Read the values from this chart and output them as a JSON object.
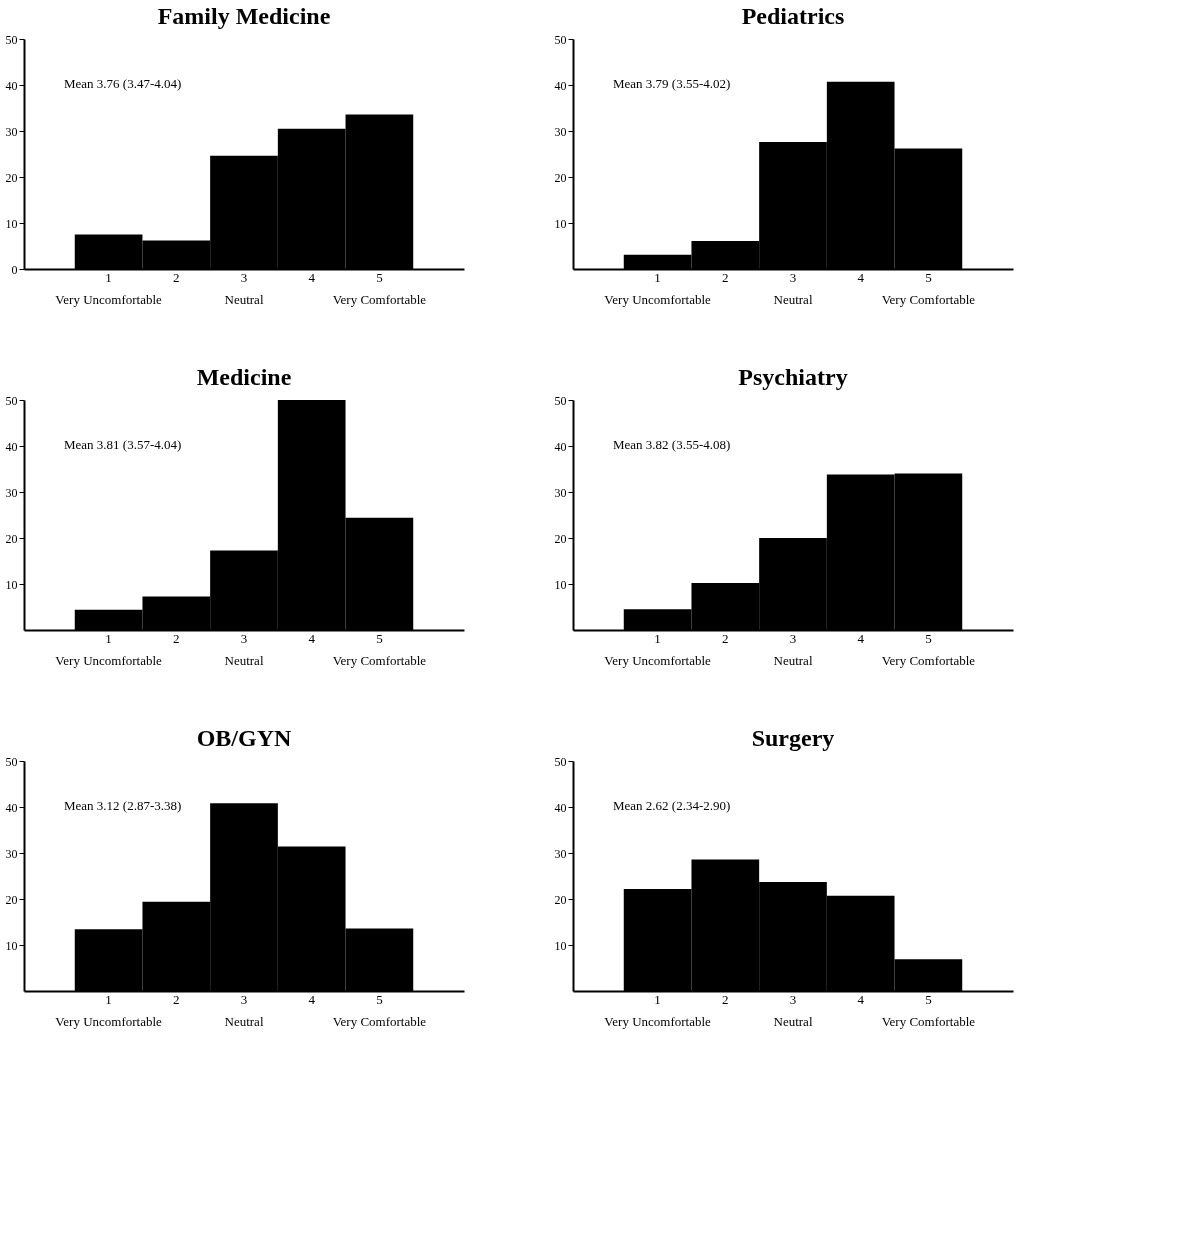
{
  "chart_data": [
    {
      "type": "bar",
      "title": "Family Medicine",
      "categories": [
        "1\nVery Uncomfortable",
        "2",
        "3\nNeutral",
        "4",
        "5\nVery Comfortable"
      ],
      "values": [
        7.5,
        6.2,
        24.6,
        30.5,
        33.6
      ],
      "color": "#000000",
      "ylim": [
        0,
        50
      ],
      "yticks": [
        0,
        10,
        20,
        30,
        40,
        50
      ],
      "grid": false,
      "annotations": [
        "Mean 3.76 (3.47-4.04)"
      ]
    },
    {
      "type": "bar",
      "title": "Pediatrics",
      "categories": [
        "1\nVery Uncomfortable",
        "2",
        "3\nNeutral",
        "4",
        "5\nVery Comfortable"
      ],
      "values": [
        3.1,
        6.1,
        27.6,
        40.7,
        26.2
      ],
      "color": "#000000",
      "ylim": [
        0,
        50
      ],
      "yticks": [
        10,
        20,
        30,
        40,
        50
      ],
      "grid": false,
      "annotations": [
        "Mean 3.79 (3.55-4.02)"
      ]
    },
    {
      "type": "bar",
      "title": "Medicine",
      "categories": [
        "1\nVery Uncomfortable",
        "2",
        "3\nNeutral",
        "4",
        "5\nVery Comfortable"
      ],
      "values": [
        4.4,
        7.3,
        17.3,
        50,
        24.4
      ],
      "color": "#000000",
      "ylim": [
        0,
        50
      ],
      "yticks": [
        10,
        20,
        30,
        40,
        50
      ],
      "grid": false,
      "annotations": [
        "Mean 3.81 (3.57-4.04)"
      ]
    },
    {
      "type": "bar",
      "title": "Psychiatry",
      "categories": [
        "1\nVery Uncomfortable",
        "2",
        "3\nNeutral",
        "4",
        "5\nVery Comfortable"
      ],
      "values": [
        4.5,
        10.2,
        20,
        33.8,
        34
      ],
      "color": "#000000",
      "ylim": [
        0,
        50
      ],
      "yticks": [
        10,
        20,
        30,
        40,
        50
      ],
      "grid": false,
      "annotations": [
        "Mean 3.82 (3.55-4.08)"
      ]
    },
    {
      "type": "bar",
      "title": "OB/GYN",
      "categories": [
        "1\nVery Uncomfortable",
        "2",
        "3\nNeutral",
        "4",
        "5\nVery Comfortable"
      ],
      "values": [
        13.4,
        19.4,
        40.8,
        31.4,
        13.6
      ],
      "color": "#000000",
      "ylim": [
        0,
        50
      ],
      "yticks": [
        10,
        20,
        30,
        40,
        50
      ],
      "grid": false,
      "annotations": [
        "Mean 3.12 (2.87-3.38)"
      ]
    },
    {
      "type": "bar",
      "title": "Surgery",
      "categories": [
        "1\nVery Uncomfortable",
        "2",
        "3\nNeutral",
        "4",
        "5\nVery Comfortable"
      ],
      "values": [
        22.2,
        28.6,
        23.7,
        20.7,
        6.9
      ],
      "color": "#000000",
      "ylim": [
        0,
        50
      ],
      "yticks": [
        10,
        20,
        30,
        40,
        50
      ],
      "grid": false,
      "annotations": [
        "Mean 2.62 (2.34-2.90)"
      ]
    }
  ]
}
